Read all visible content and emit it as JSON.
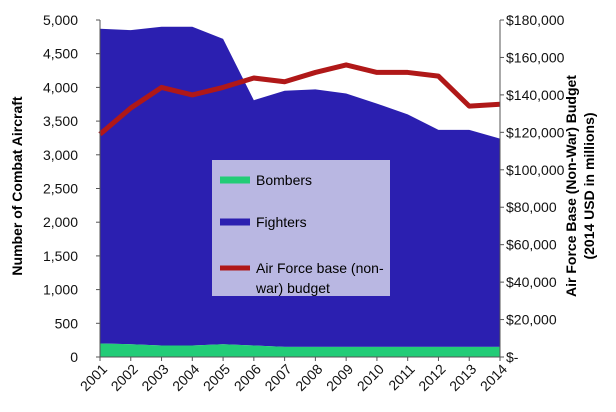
{
  "chart_data": {
    "type": "area",
    "title": "",
    "categories": [
      "2001",
      "2002",
      "2003",
      "2004",
      "2005",
      "2006",
      "2007",
      "2008",
      "2009",
      "2010",
      "2011",
      "2012",
      "2013",
      "2014"
    ],
    "y_left": {
      "label": "Number of Combat Aircraft",
      "lim": [
        0,
        5000
      ],
      "ticks": [
        "0",
        "500",
        "1,000",
        "1,500",
        "2,000",
        "2,500",
        "3,000",
        "3,500",
        "4,000",
        "4,500",
        "5,000"
      ]
    },
    "y_right": {
      "label_line1": "Air Force Base (Non-War) Budget",
      "label_line2": "(2014 USD in millions)",
      "lim": [
        0,
        180000
      ],
      "ticks": [
        "$-",
        "$20,000",
        "$40,000",
        "$60,000",
        "$80,000",
        "$100,000",
        "$120,000",
        "$140,000",
        "$160,000",
        "$180,000"
      ]
    },
    "grid": false,
    "legend_placement": "center",
    "series": [
      {
        "name": "Bombers",
        "kind": "stacked-area",
        "axis": "left",
        "color": "#22cc77",
        "values": [
          200,
          190,
          170,
          170,
          190,
          170,
          150,
          150,
          150,
          150,
          150,
          150,
          150,
          150
        ]
      },
      {
        "name": "Fighters",
        "kind": "stacked-area",
        "axis": "left",
        "color": "#2b1fb0",
        "values": [
          4670,
          4660,
          4730,
          4730,
          4530,
          3640,
          3800,
          3820,
          3760,
          3610,
          3450,
          3220,
          3220,
          3090
        ]
      },
      {
        "name": "Air Force base (non-war) budget",
        "name_lines": [
          "Air Force base (non-",
          "war) budget"
        ],
        "kind": "line",
        "axis": "right",
        "color": "#b01818",
        "values": [
          119000,
          133000,
          144000,
          140000,
          144000,
          149000,
          147000,
          152000,
          156000,
          152000,
          152000,
          150000,
          134000,
          135000
        ]
      }
    ]
  }
}
